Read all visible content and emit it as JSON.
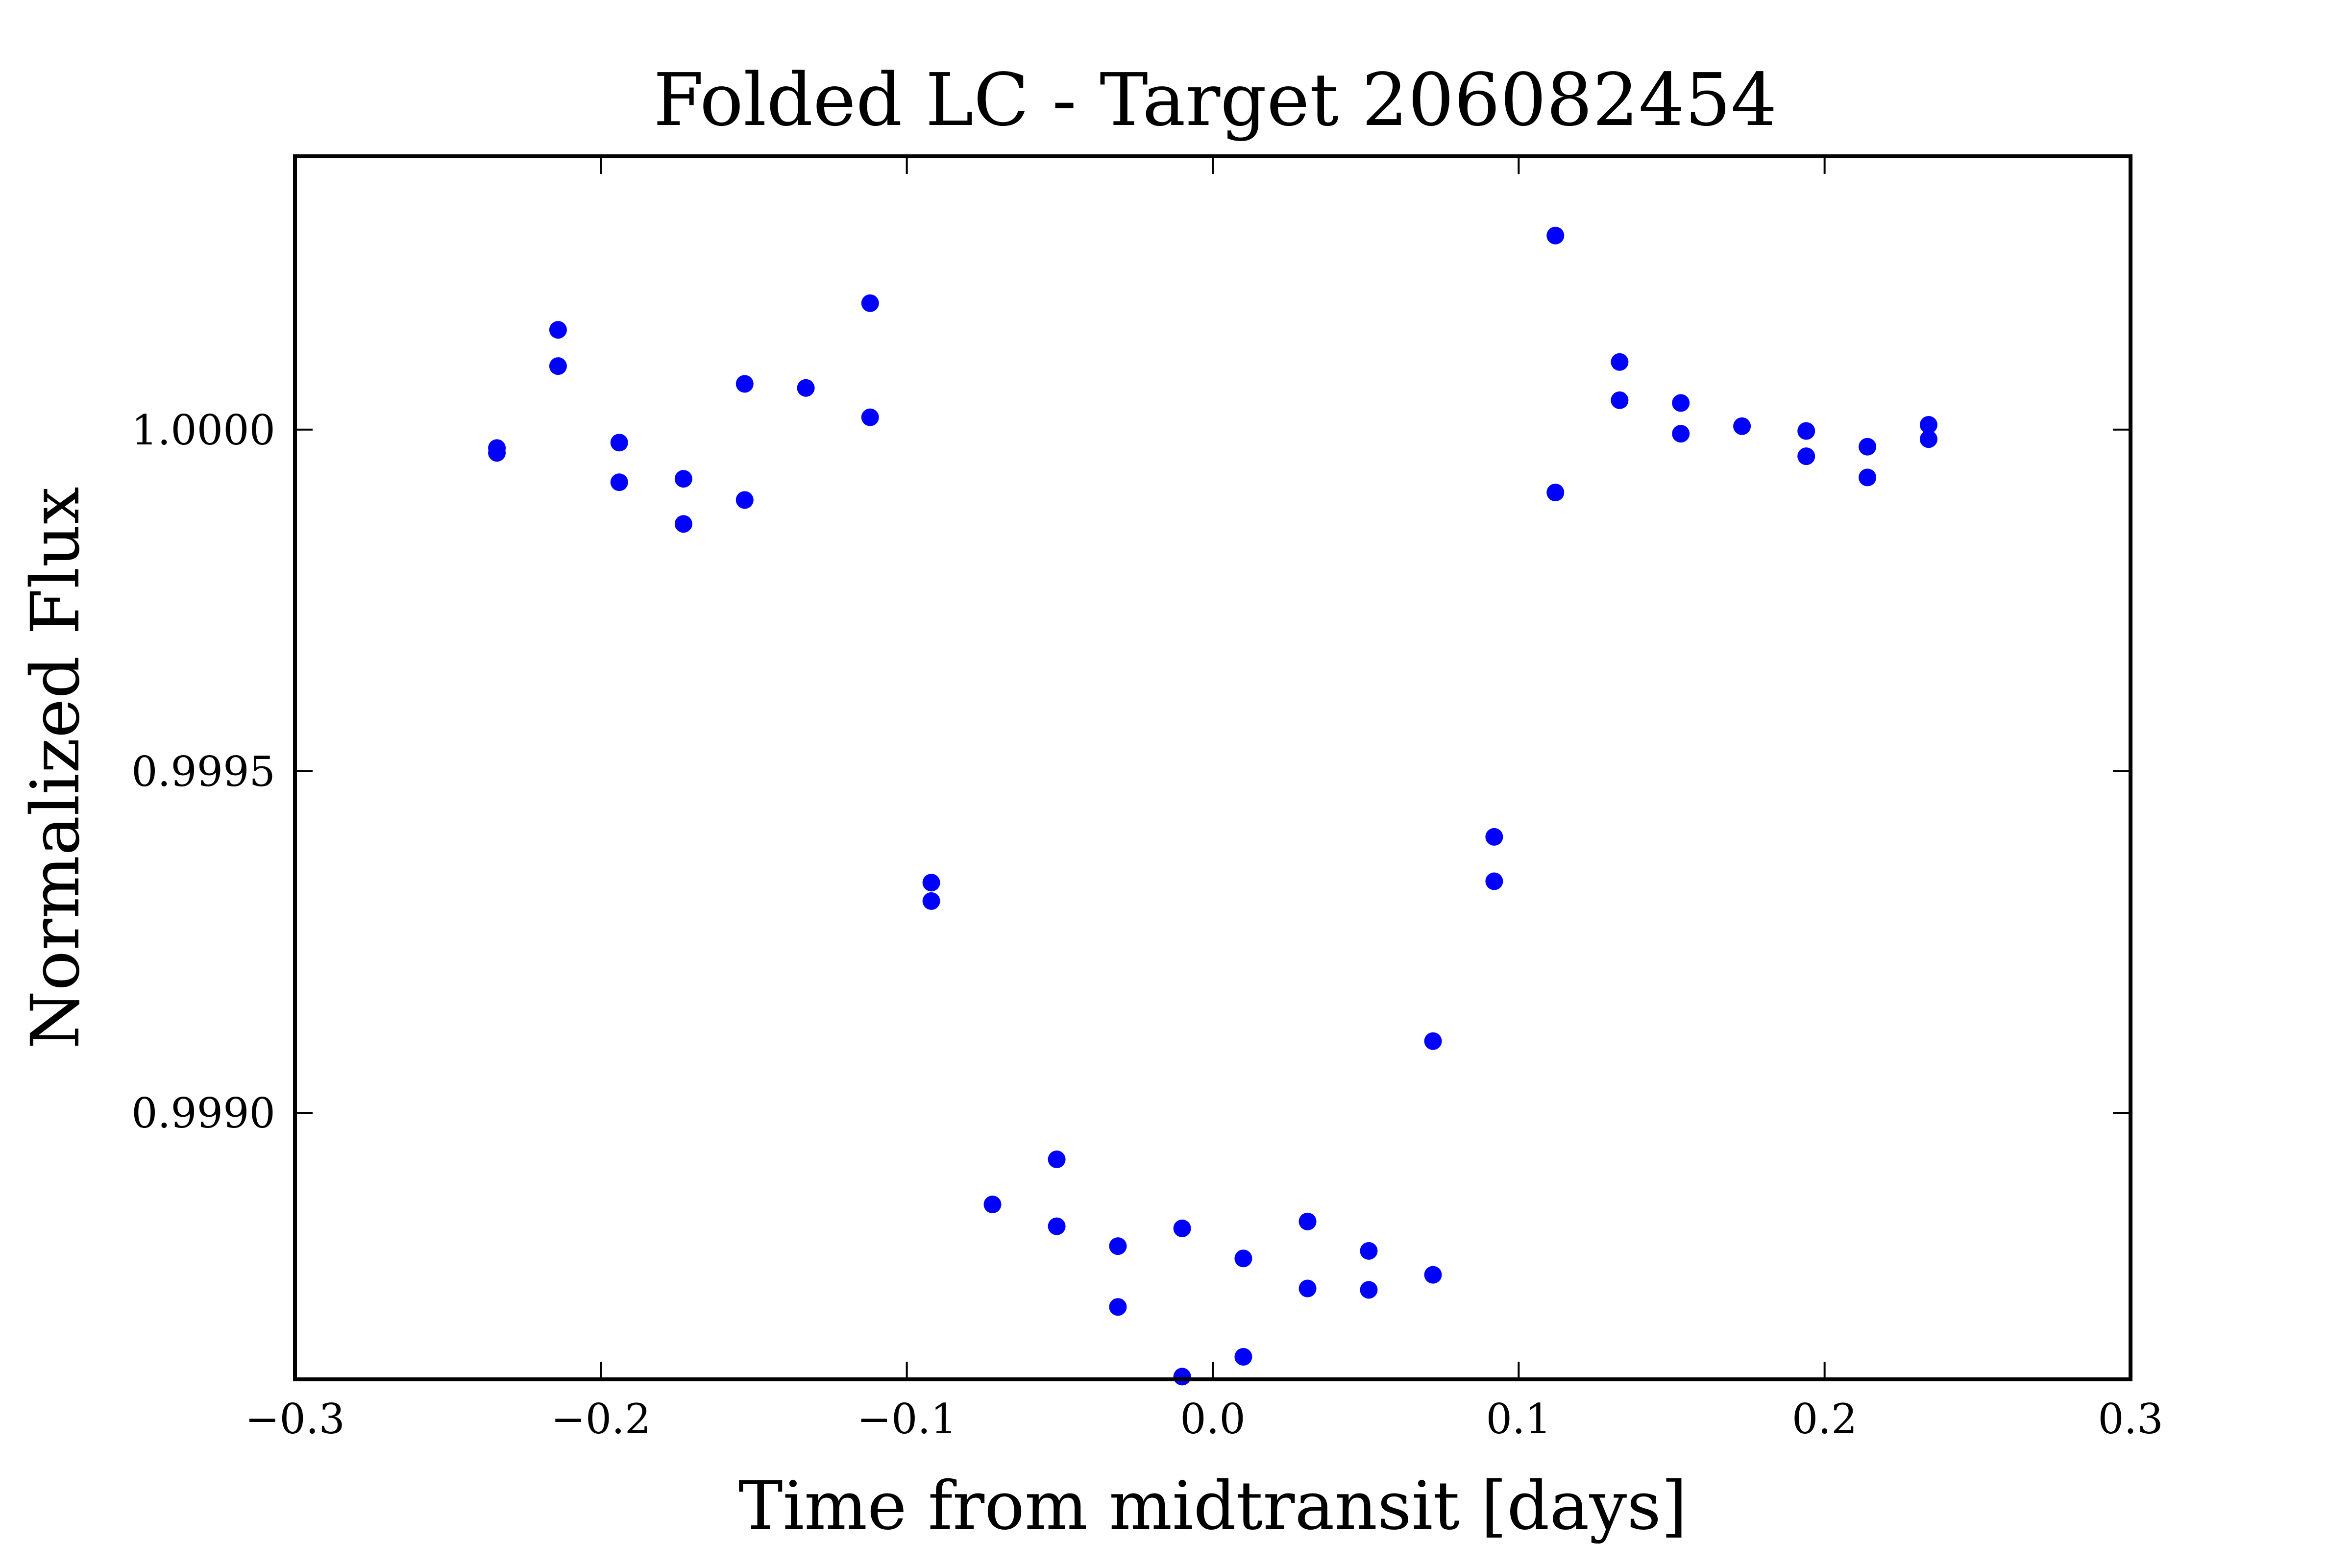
{
  "chart_data": {
    "type": "scatter",
    "title": "Folded LC - Target 206082454",
    "xlabel": "Time from midtransit [days]",
    "ylabel": "Normalized Flux",
    "xlim": [
      -0.3,
      0.3
    ],
    "ylim": [
      0.99861,
      1.0004
    ],
    "xticks": [
      -0.3,
      -0.2,
      -0.1,
      0.0,
      0.1,
      0.2,
      0.3
    ],
    "xtick_labels": [
      "−0.3",
      "−0.2",
      "−0.1",
      "0.0",
      "0.1",
      "0.2",
      "0.3"
    ],
    "yticks": [
      0.999,
      0.9995,
      1.0
    ],
    "ytick_labels": [
      "0.9990",
      "0.9995",
      "1.0000"
    ],
    "grid": false,
    "marker_color": "#0000ff",
    "series": [
      {
        "points": [
          [
            -0.234,
            0.999973
          ],
          [
            -0.234,
            0.999966
          ],
          [
            -0.214,
            1.000146
          ],
          [
            -0.214,
            1.000093
          ],
          [
            -0.194,
            0.999981
          ],
          [
            -0.194,
            0.999923
          ],
          [
            -0.173,
            0.999928
          ],
          [
            -0.173,
            0.999862
          ],
          [
            -0.153,
            1.000067
          ],
          [
            -0.153,
            0.999897
          ],
          [
            -0.133,
            1.000061
          ],
          [
            -0.112,
            1.000185
          ],
          [
            -0.112,
            1.000018
          ],
          [
            -0.092,
            0.999337
          ],
          [
            -0.092,
            0.99931
          ],
          [
            -0.072,
            0.998866
          ],
          [
            -0.051,
            0.998932
          ],
          [
            -0.051,
            0.998834
          ],
          [
            -0.031,
            0.998805
          ],
          [
            -0.031,
            0.998716
          ],
          [
            -0.01,
            0.998831
          ],
          [
            -0.01,
            0.998614
          ],
          [
            0.01,
            0.998787
          ],
          [
            0.01,
            0.998643
          ],
          [
            0.031,
            0.998841
          ],
          [
            0.031,
            0.998743
          ],
          [
            0.051,
            0.998798
          ],
          [
            0.051,
            0.998741
          ],
          [
            0.072,
            0.998763
          ],
          [
            0.072,
            0.999105
          ],
          [
            0.092,
            0.999404
          ],
          [
            0.092,
            0.999339
          ],
          [
            0.112,
            1.000284
          ],
          [
            0.112,
            0.999908
          ],
          [
            0.133,
            1.000099
          ],
          [
            0.133,
            1.000043
          ],
          [
            0.153,
            1.000039
          ],
          [
            0.153,
            0.999994
          ],
          [
            0.173,
            1.000005
          ],
          [
            0.194,
            0.999998
          ],
          [
            0.194,
            0.999961
          ],
          [
            0.214,
            0.999975
          ],
          [
            0.214,
            0.99993
          ],
          [
            0.234,
            1.000007
          ],
          [
            0.234,
            0.999986
          ]
        ]
      }
    ]
  }
}
